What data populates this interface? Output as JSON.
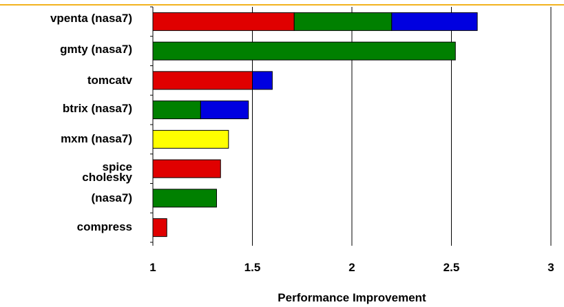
{
  "colors": {
    "accent_line": "#f2b21e",
    "red": "#e00000",
    "green": "#008000",
    "blue": "#0000e0",
    "yellow": "#ffff00"
  },
  "chart_data": {
    "type": "bar",
    "orientation": "horizontal",
    "stacked": true,
    "xlabel": "Performance Improvement",
    "ylabel": "",
    "xlim": [
      1,
      3
    ],
    "xticks": [
      "1",
      "1.5",
      "2",
      "2.5",
      "3"
    ],
    "grid": "vertical gridlines",
    "legend": "none",
    "categories": [
      {
        "label_lines": [
          "vpenta (nasa7)"
        ]
      },
      {
        "label_lines": [
          "gmty (nasa7)"
        ]
      },
      {
        "label_lines": [
          "tomcatv"
        ]
      },
      {
        "label_lines": [
          "btrix (nasa7)"
        ]
      },
      {
        "label_lines": [
          "mxm (nasa7)"
        ]
      },
      {
        "label_lines": [
          "spice"
        ]
      },
      {
        "label_lines": [
          "cholesky",
          "(nasa7)"
        ]
      },
      {
        "label_lines": [
          "compress"
        ]
      }
    ],
    "segments": [
      [
        {
          "from": 1,
          "to": 1.71,
          "color": "red"
        },
        {
          "from": 1.71,
          "to": 2.2,
          "color": "green"
        },
        {
          "from": 2.2,
          "to": 2.63,
          "color": "blue"
        }
      ],
      [
        {
          "from": 1,
          "to": 2.52,
          "color": "green"
        }
      ],
      [
        {
          "from": 1,
          "to": 1.5,
          "color": "red"
        },
        {
          "from": 1.5,
          "to": 1.6,
          "color": "blue"
        }
      ],
      [
        {
          "from": 1,
          "to": 1.24,
          "color": "green"
        },
        {
          "from": 1.24,
          "to": 1.48,
          "color": "blue"
        }
      ],
      [
        {
          "from": 1,
          "to": 1.38,
          "color": "yellow"
        }
      ],
      [
        {
          "from": 1,
          "to": 1.34,
          "color": "red"
        }
      ],
      [
        {
          "from": 1,
          "to": 1.32,
          "color": "green"
        }
      ],
      [
        {
          "from": 1,
          "to": 1.07,
          "color": "red"
        }
      ]
    ]
  }
}
